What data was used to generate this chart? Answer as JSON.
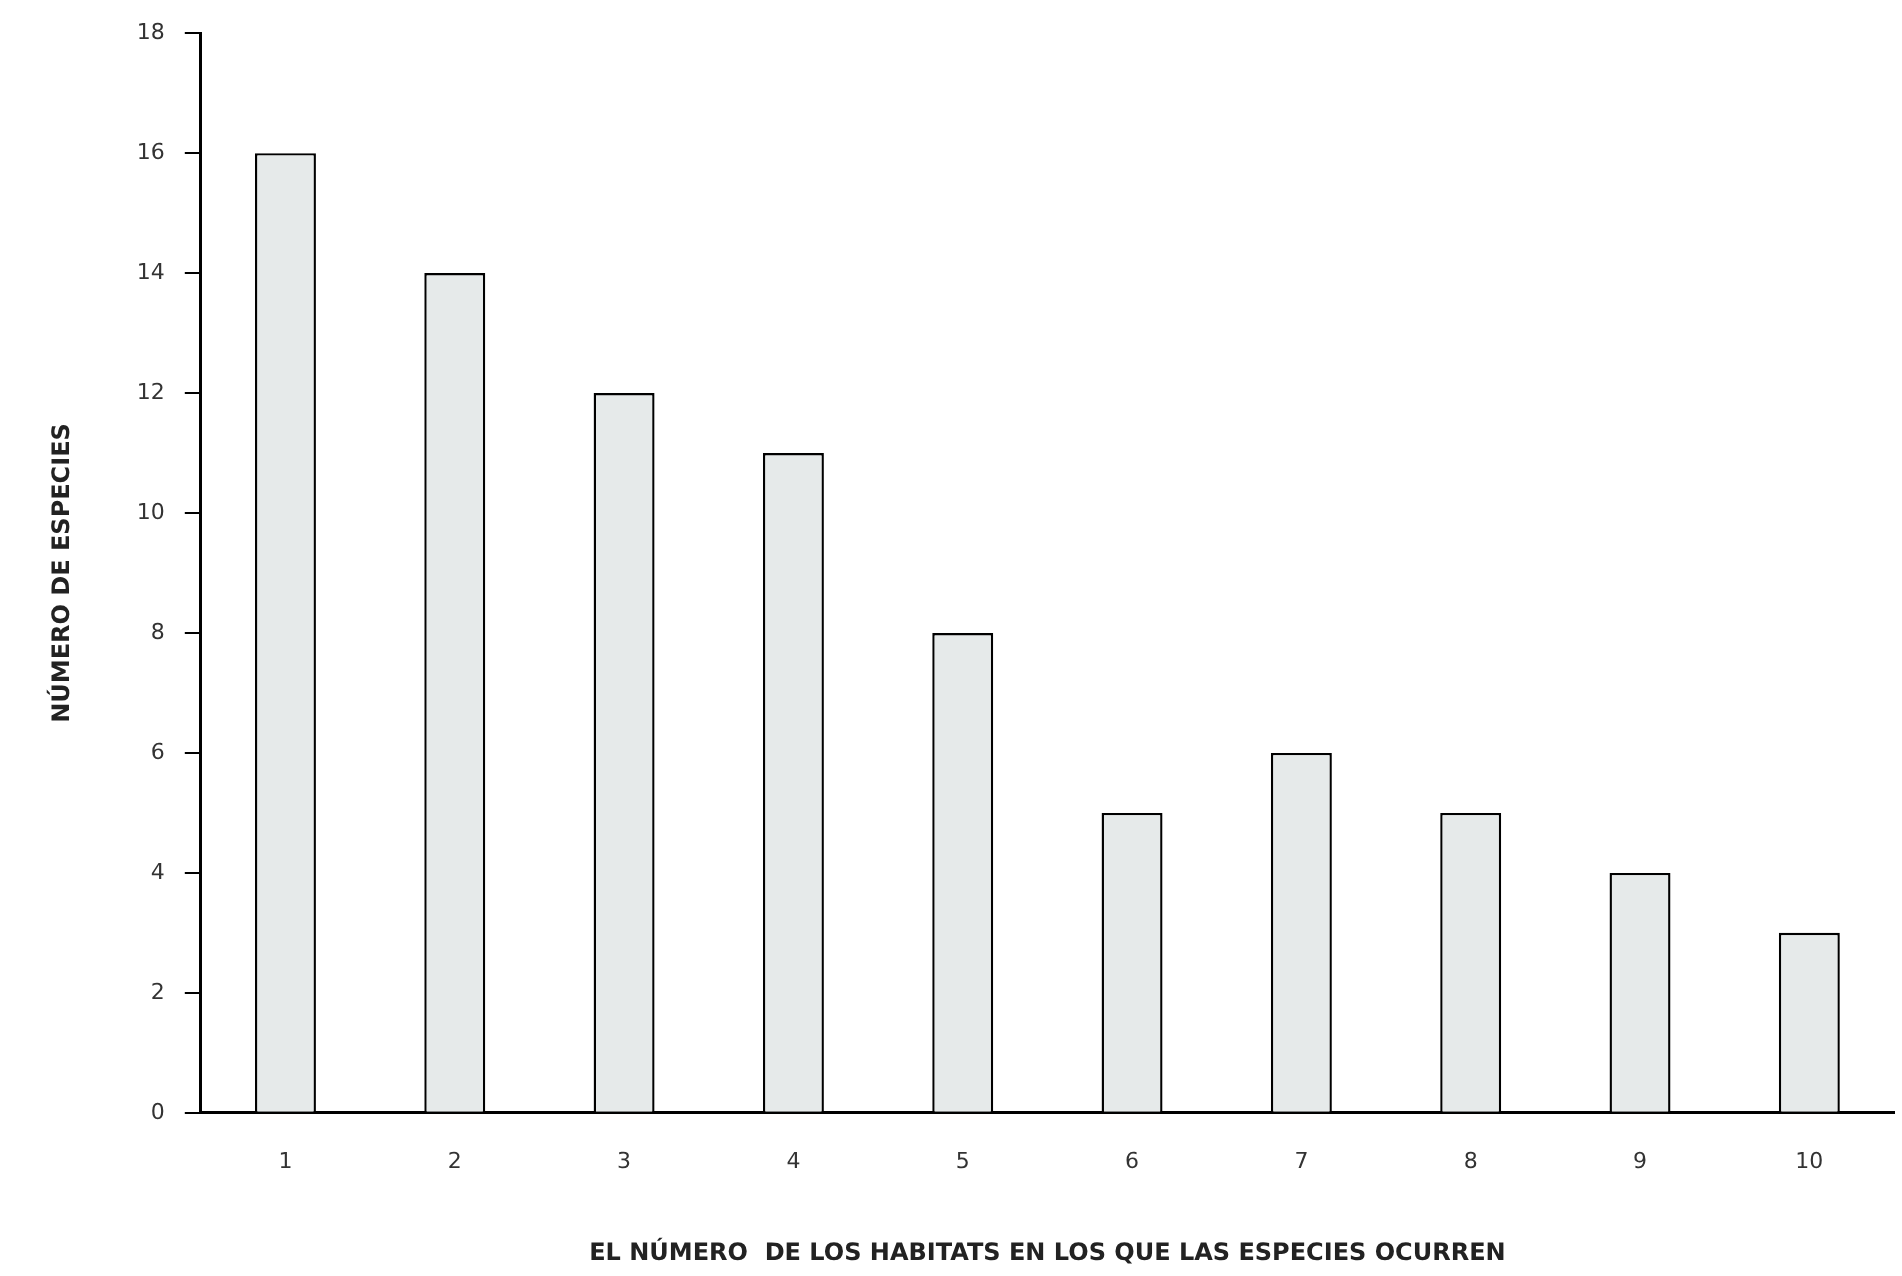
{
  "chart_data": {
    "type": "bar",
    "xlabel": "EL NÚMERO  DE LOS HABITATS EN LOS QUE LAS ESPECIES OCURREN",
    "ylabel": "NÚMERO DE ESPECIES",
    "categories": [
      "1",
      "2",
      "3",
      "4",
      "5",
      "6",
      "7",
      "8",
      "9",
      "10"
    ],
    "values": [
      16,
      14,
      12,
      11,
      8,
      5,
      6,
      5,
      4,
      3
    ],
    "color": "#e6eaea",
    "ylim": [
      0,
      18
    ],
    "yticks": [
      0,
      2,
      4,
      6,
      8,
      10,
      12,
      14,
      16,
      18
    ],
    "grid": false,
    "legend": false
  }
}
